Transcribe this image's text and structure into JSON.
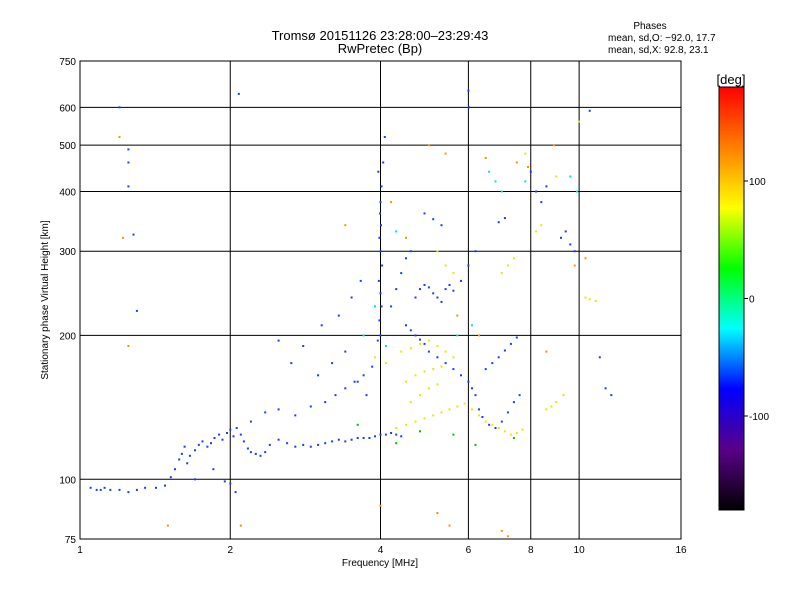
{
  "chart_data": {
    "type": "scatter",
    "title": "Tromsø 20151126 23:28:00–23:29:43",
    "subtitle": "RwPretec (Bp)",
    "xlabel": "Frequency [MHz]",
    "ylabel": "Stationary phase Virtual Height [km]",
    "x_scale": "log",
    "y_scale": "log",
    "xlim": [
      1,
      16
    ],
    "ylim": [
      75,
      750
    ],
    "x_ticks": [
      1,
      2,
      4,
      6,
      8,
      10,
      16
    ],
    "y_ticks": [
      75,
      100,
      200,
      300,
      400,
      500,
      600,
      750
    ],
    "grid": true,
    "stats": {
      "heading": "Phases",
      "line_o": "mean, sd,O: −92.0, 17.7",
      "line_x": "mean, sd,X: 92.8, 23.1"
    },
    "colorbar": {
      "label": "[deg]",
      "range": [
        -180,
        180
      ],
      "ticks": [
        100,
        0,
        -100
      ],
      "colors": [
        "#000000",
        "#5a0088",
        "#0000ff",
        "#00ffff",
        "#00ff00",
        "#ffff00",
        "#ff8000",
        "#ff0000"
      ]
    },
    "series": [
      {
        "phase_deg": -100,
        "color": "#1a3cff",
        "points": [
          [
            1.05,
            96
          ],
          [
            1.08,
            95
          ],
          [
            1.1,
            95
          ],
          [
            1.12,
            96
          ],
          [
            1.15,
            95
          ],
          [
            1.2,
            95
          ],
          [
            1.25,
            94
          ],
          [
            1.3,
            95
          ],
          [
            1.35,
            96
          ],
          [
            1.42,
            96
          ],
          [
            1.48,
            97
          ],
          [
            1.52,
            101
          ],
          [
            1.55,
            105
          ],
          [
            1.58,
            110
          ],
          [
            1.6,
            113
          ],
          [
            1.62,
            117
          ],
          [
            1.64,
            108
          ],
          [
            1.66,
            112
          ],
          [
            1.7,
            115
          ],
          [
            1.73,
            118
          ],
          [
            1.76,
            120
          ],
          [
            1.8,
            117
          ],
          [
            1.83,
            119
          ],
          [
            1.86,
            122
          ],
          [
            1.9,
            124
          ],
          [
            1.93,
            121
          ],
          [
            1.97,
            125
          ],
          [
            2.0,
            127
          ],
          [
            2.03,
            123
          ],
          [
            2.06,
            128
          ],
          [
            2.1,
            124
          ],
          [
            2.13,
            120
          ],
          [
            2.17,
            116
          ],
          [
            2.2,
            114
          ],
          [
            2.25,
            113
          ],
          [
            2.3,
            112
          ],
          [
            2.35,
            114
          ],
          [
            2.4,
            118
          ],
          [
            2.5,
            121
          ],
          [
            2.6,
            119
          ],
          [
            2.7,
            117
          ],
          [
            2.8,
            118
          ],
          [
            2.9,
            117
          ],
          [
            3.0,
            118
          ],
          [
            3.1,
            119
          ],
          [
            3.2,
            120
          ],
          [
            3.3,
            121
          ],
          [
            3.4,
            120
          ],
          [
            3.5,
            121
          ],
          [
            3.6,
            122
          ],
          [
            3.7,
            122
          ],
          [
            3.8,
            122
          ],
          [
            3.9,
            123
          ],
          [
            4.0,
            124
          ],
          [
            4.1,
            124
          ],
          [
            4.2,
            125
          ],
          [
            4.3,
            124
          ],
          [
            4.4,
            123
          ],
          [
            2.2,
            132
          ],
          [
            2.35,
            138
          ],
          [
            2.5,
            140
          ],
          [
            2.7,
            136
          ],
          [
            2.9,
            142
          ],
          [
            3.1,
            145
          ],
          [
            3.25,
            150
          ],
          [
            3.4,
            155
          ],
          [
            3.55,
            160
          ],
          [
            3.7,
            165
          ],
          [
            3.85,
            172
          ],
          [
            3.0,
            165
          ],
          [
            3.2,
            175
          ],
          [
            3.4,
            185
          ],
          [
            3.6,
            160
          ],
          [
            3.75,
            150
          ],
          [
            3.95,
            195
          ],
          [
            4.0,
            200
          ],
          [
            3.98,
            215
          ],
          [
            4.02,
            230
          ],
          [
            4.0,
            245
          ],
          [
            3.97,
            260
          ],
          [
            4.03,
            280
          ],
          [
            4.0,
            300
          ],
          [
            3.98,
            320
          ],
          [
            4.01,
            340
          ],
          [
            3.99,
            360
          ],
          [
            4.0,
            380
          ],
          [
            4.02,
            410
          ],
          [
            3.96,
            440
          ],
          [
            4.05,
            460
          ],
          [
            4.08,
            520
          ],
          [
            4.2,
            230
          ],
          [
            4.3,
            250
          ],
          [
            4.4,
            270
          ],
          [
            4.5,
            290
          ],
          [
            4.6,
            300
          ],
          [
            4.7,
            240
          ],
          [
            4.8,
            250
          ],
          [
            4.9,
            255
          ],
          [
            5.0,
            252
          ],
          [
            5.1,
            245
          ],
          [
            5.2,
            240
          ],
          [
            5.3,
            235
          ],
          [
            5.4,
            250
          ],
          [
            5.5,
            255
          ],
          [
            5.6,
            248
          ],
          [
            4.5,
            210
          ],
          [
            4.6,
            205
          ],
          [
            4.7,
            200
          ],
          [
            4.8,
            196
          ],
          [
            4.9,
            192
          ],
          [
            5.0,
            185
          ],
          [
            5.2,
            180
          ],
          [
            5.4,
            175
          ],
          [
            5.6,
            170
          ],
          [
            5.8,
            165
          ],
          [
            6.0,
            160
          ],
          [
            6.1,
            155
          ],
          [
            6.2,
            150
          ],
          [
            6.3,
            140
          ],
          [
            6.4,
            135
          ],
          [
            6.6,
            130
          ],
          [
            6.8,
            128
          ],
          [
            7.0,
            132
          ],
          [
            7.2,
            138
          ],
          [
            7.4,
            145
          ],
          [
            7.6,
            150
          ],
          [
            6.5,
            170
          ],
          [
            6.7,
            175
          ],
          [
            6.9,
            180
          ],
          [
            7.1,
            186
          ],
          [
            7.3,
            192
          ],
          [
            7.5,
            198
          ],
          [
            9.2,
            320
          ],
          [
            9.4,
            330
          ],
          [
            9.6,
            310
          ],
          [
            9.8,
            300
          ],
          [
            5.8,
            260
          ],
          [
            6.0,
            280
          ],
          [
            6.2,
            300
          ],
          [
            6.9,
            345
          ],
          [
            7.1,
            352
          ],
          [
            6.0,
            650
          ],
          [
            6.02,
            600
          ],
          [
            4.9,
            360
          ],
          [
            5.1,
            350
          ],
          [
            5.3,
            340
          ],
          [
            1.25,
            410
          ],
          [
            1.25,
            460
          ],
          [
            1.25,
            490
          ],
          [
            1.28,
            325
          ],
          [
            1.2,
            600
          ],
          [
            1.3,
            225
          ],
          [
            2.08,
            640
          ],
          [
            2.5,
            195
          ],
          [
            2.65,
            175
          ],
          [
            2.8,
            190
          ],
          [
            3.05,
            210
          ],
          [
            3.3,
            220
          ],
          [
            3.5,
            240
          ],
          [
            3.65,
            260
          ],
          [
            8.0,
            440
          ],
          [
            8.2,
            400
          ],
          [
            8.4,
            380
          ],
          [
            8.6,
            410
          ],
          [
            11.0,
            180
          ],
          [
            11.3,
            155
          ],
          [
            11.6,
            150
          ],
          [
            10.5,
            590
          ],
          [
            2.0,
            98
          ],
          [
            2.05,
            94
          ],
          [
            1.7,
            100
          ],
          [
            1.85,
            105
          ],
          [
            1.95,
            99
          ]
        ]
      },
      {
        "phase_deg": 100,
        "color": "#e8e800",
        "points": [
          [
            4.3,
            128
          ],
          [
            4.5,
            130
          ],
          [
            4.7,
            132
          ],
          [
            4.9,
            134
          ],
          [
            5.1,
            136
          ],
          [
            5.3,
            138
          ],
          [
            5.5,
            140
          ],
          [
            5.7,
            142
          ],
          [
            5.9,
            144
          ],
          [
            6.1,
            140
          ],
          [
            6.3,
            136
          ],
          [
            6.5,
            132
          ],
          [
            6.7,
            130
          ],
          [
            6.9,
            128
          ],
          [
            7.1,
            126
          ],
          [
            7.3,
            124
          ],
          [
            7.5,
            125
          ],
          [
            7.7,
            127
          ],
          [
            4.4,
            185
          ],
          [
            4.6,
            188
          ],
          [
            4.8,
            192
          ],
          [
            5.0,
            195
          ],
          [
            5.2,
            190
          ],
          [
            5.4,
            185
          ],
          [
            5.6,
            180
          ],
          [
            4.5,
            160
          ],
          [
            4.7,
            165
          ],
          [
            4.9,
            168
          ],
          [
            5.1,
            170
          ],
          [
            5.3,
            172
          ],
          [
            4.6,
            145
          ],
          [
            4.8,
            150
          ],
          [
            5.0,
            155
          ],
          [
            5.2,
            158
          ],
          [
            8.6,
            140
          ],
          [
            8.8,
            142
          ],
          [
            9.0,
            145
          ],
          [
            9.3,
            150
          ],
          [
            10.3,
            240
          ],
          [
            10.5,
            238
          ],
          [
            10.8,
            236
          ],
          [
            8.2,
            330
          ],
          [
            8.4,
            340
          ],
          [
            7.0,
            270
          ],
          [
            7.2,
            280
          ],
          [
            7.4,
            290
          ],
          [
            5.2,
            300
          ],
          [
            5.4,
            280
          ],
          [
            5.6,
            270
          ],
          [
            10.0,
            560
          ],
          [
            9.0,
            430
          ],
          [
            7.8,
            480
          ],
          [
            3.9,
            180
          ],
          [
            4.1,
            175
          ]
        ]
      },
      {
        "phase_deg": 140,
        "color": "#ff9000",
        "points": [
          [
            1.2,
            520
          ],
          [
            1.22,
            320
          ],
          [
            1.25,
            190
          ],
          [
            1.5,
            80
          ],
          [
            4.0,
            88
          ],
          [
            5.2,
            85
          ],
          [
            5.5,
            80
          ],
          [
            7.0,
            78
          ],
          [
            7.2,
            76
          ],
          [
            5.0,
            500
          ],
          [
            5.4,
            480
          ],
          [
            6.5,
            470
          ],
          [
            7.5,
            460
          ],
          [
            7.9,
            450
          ],
          [
            8.9,
            500
          ],
          [
            9.8,
            280
          ],
          [
            10.3,
            290
          ],
          [
            4.2,
            380
          ],
          [
            4.5,
            320
          ],
          [
            5.7,
            220
          ],
          [
            6.3,
            200
          ],
          [
            8.6,
            185
          ],
          [
            3.4,
            340
          ],
          [
            2.1,
            80
          ]
        ]
      },
      {
        "phase_deg": 30,
        "color": "#00e0e0",
        "points": [
          [
            6.6,
            440
          ],
          [
            6.8,
            420
          ],
          [
            7.0,
            400
          ],
          [
            3.7,
            200
          ],
          [
            3.9,
            230
          ],
          [
            4.1,
            190
          ],
          [
            5.7,
            200
          ],
          [
            6.1,
            210
          ],
          [
            7.8,
            420
          ],
          [
            9.6,
            430
          ],
          [
            9.9,
            400
          ],
          [
            4.3,
            330
          ]
        ]
      },
      {
        "phase_deg": -30,
        "color": "#00c000",
        "points": [
          [
            4.3,
            119
          ],
          [
            4.8,
            126
          ],
          [
            5.6,
            124
          ],
          [
            6.2,
            118
          ],
          [
            7.4,
            122
          ],
          [
            3.6,
            130
          ]
        ]
      }
    ]
  }
}
